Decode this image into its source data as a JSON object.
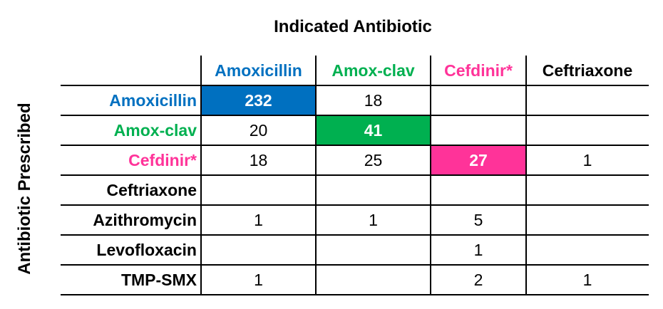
{
  "title": "Indicated Antibiotic",
  "side_label": "Antibiotic Prescribed",
  "table": {
    "columns": [
      "Amoxicillin",
      "Amox-clav",
      "Cefdinir*",
      "Ceftriaxone"
    ],
    "rows": [
      {
        "label": "Amoxicillin",
        "cells": [
          232,
          18,
          null,
          null
        ]
      },
      {
        "label": "Amox-clav",
        "cells": [
          20,
          41,
          null,
          null
        ]
      },
      {
        "label": "Cefdinir*",
        "cells": [
          18,
          25,
          27,
          1
        ]
      },
      {
        "label": "Ceftriaxone",
        "cells": [
          null,
          null,
          null,
          null
        ]
      },
      {
        "label": "Azithromycin",
        "cells": [
          1,
          1,
          5,
          null
        ]
      },
      {
        "label": "Levofloxacin",
        "cells": [
          null,
          null,
          1,
          null
        ]
      },
      {
        "label": "TMP-SMX",
        "cells": [
          1,
          null,
          2,
          1
        ]
      }
    ]
  }
}
